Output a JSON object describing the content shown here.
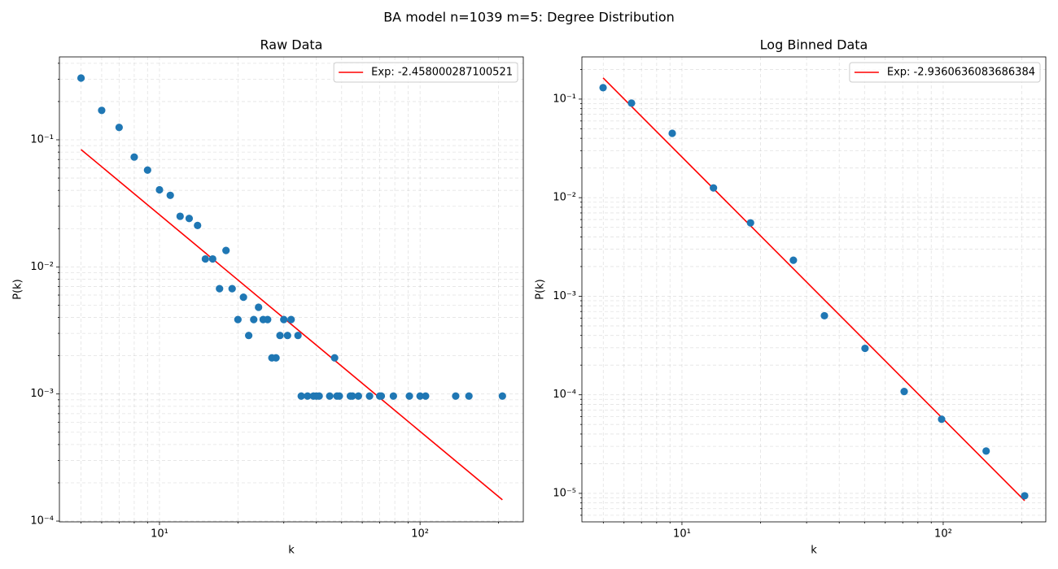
{
  "title": "BA model n=1039 m=5: Degree Distribution",
  "chart_data": [
    {
      "type": "scatter",
      "title": "Raw Data",
      "xlabel": "k",
      "ylabel": "P(k)",
      "xscale": "log",
      "yscale": "log",
      "grid": true,
      "legend": "upper right",
      "xlim": [
        4.13,
        249
      ],
      "ylim": [
        9.86e-05,
        0.449
      ],
      "xticks": [
        {
          "value": 10,
          "label": "10¹"
        },
        {
          "value": 100,
          "label": "10²"
        }
      ],
      "yticks": [
        {
          "value": 0.0001,
          "label": "10⁻⁴"
        },
        {
          "value": 0.001,
          "label": "10⁻³"
        },
        {
          "value": 0.01,
          "label": "10⁻²"
        },
        {
          "value": 0.1,
          "label": "10⁻¹"
        }
      ],
      "xminorticks": [
        5,
        6,
        7,
        8,
        9,
        20,
        30,
        40,
        50,
        60,
        70,
        80,
        90,
        200
      ],
      "yminorticks": [
        0.0002,
        0.0003,
        0.0004,
        0.0005,
        0.0006,
        0.0007,
        0.0008,
        0.0009,
        0.002,
        0.003,
        0.004,
        0.005,
        0.006,
        0.007,
        0.008,
        0.009,
        0.02,
        0.03,
        0.04,
        0.05,
        0.06,
        0.07,
        0.08,
        0.09,
        0.2,
        0.3,
        0.4
      ],
      "series": [
        {
          "name": "Exp: -2.458000287100521",
          "type": "line",
          "color": "#ff0000",
          "x": [
            5,
            207
          ],
          "values": [
            0.0838,
            0.000147
          ]
        },
        {
          "type": "scatter",
          "color": "#1f77b4",
          "x": [
            5,
            6,
            7,
            8,
            9,
            10,
            11,
            12,
            13,
            14,
            15,
            16,
            17,
            18,
            19,
            20,
            21,
            22,
            23,
            24,
            25,
            26,
            27,
            28,
            29,
            30,
            31,
            32,
            34,
            35,
            37,
            39,
            40,
            41,
            45,
            47,
            48,
            49,
            54,
            55,
            58,
            64,
            70,
            71,
            79,
            91,
            100,
            105,
            137,
            154,
            207
          ],
          "values": [
            0.3061,
            0.1704,
            0.1251,
            0.07315,
            0.05775,
            0.04042,
            0.03657,
            0.02502,
            0.02406,
            0.02117,
            0.01155,
            0.01155,
            0.006737,
            0.01347,
            0.006737,
            0.00385,
            0.005775,
            0.002887,
            0.00385,
            0.004812,
            0.00385,
            0.00385,
            0.001925,
            0.001925,
            0.002887,
            0.00385,
            0.002887,
            0.00385,
            0.002887,
            0.0009625,
            0.0009625,
            0.0009625,
            0.0009625,
            0.0009625,
            0.0009625,
            0.001925,
            0.0009625,
            0.0009625,
            0.0009625,
            0.0009625,
            0.0009625,
            0.0009625,
            0.0009625,
            0.0009625,
            0.0009625,
            0.0009625,
            0.0009625,
            0.0009625,
            0.0009625,
            0.0009625,
            0.0009625
          ]
        }
      ]
    },
    {
      "type": "scatter",
      "title": "Log Binned Data",
      "xlabel": "k",
      "ylabel": "P(k)",
      "xscale": "log",
      "yscale": "log",
      "grid": true,
      "legend": "upper right",
      "xlim": [
        4.14,
        247
      ],
      "ylim": [
        5.14e-06,
        0.268
      ],
      "xticks": [
        {
          "value": 10,
          "label": "10¹"
        },
        {
          "value": 100,
          "label": "10²"
        }
      ],
      "yticks": [
        {
          "value": 1e-05,
          "label": "10⁻⁵"
        },
        {
          "value": 0.0001,
          "label": "10⁻⁴"
        },
        {
          "value": 0.001,
          "label": "10⁻³"
        },
        {
          "value": 0.01,
          "label": "10⁻²"
        },
        {
          "value": 0.1,
          "label": "10⁻¹"
        }
      ],
      "xminorticks": [
        5,
        6,
        7,
        8,
        9,
        20,
        30,
        40,
        50,
        60,
        70,
        80,
        90,
        200
      ],
      "yminorticks": [
        6e-06,
        7e-06,
        8e-06,
        9e-06,
        2e-05,
        3e-05,
        4e-05,
        5e-05,
        6e-05,
        7e-05,
        8e-05,
        9e-05,
        0.0002,
        0.0003,
        0.0004,
        0.0005,
        0.0006,
        0.0007,
        0.0008,
        0.0009,
        0.002,
        0.003,
        0.004,
        0.005,
        0.006,
        0.007,
        0.008,
        0.009,
        0.02,
        0.03,
        0.04,
        0.05,
        0.06,
        0.07,
        0.08,
        0.09,
        0.2
      ],
      "series": [
        {
          "name": "Exp: -2.9360636083686384",
          "type": "line",
          "color": "#ff0000",
          "x": [
            4.99,
            205
          ],
          "values": [
            0.164,
            8.43e-06
          ]
        },
        {
          "type": "scatter",
          "color": "#1f77b4",
          "x": [
            4.99,
            6.41,
            9.18,
            13.2,
            18.3,
            26.7,
            35.1,
            50.2,
            70.9,
            98.6,
            146,
            205
          ],
          "values": [
            0.1305,
            0.091,
            0.045,
            0.01256,
            0.00555,
            0.00232,
            0.000634,
            0.000296,
            0.000108,
            5.65e-05,
            2.69e-05,
            9.45e-06
          ]
        }
      ]
    }
  ]
}
